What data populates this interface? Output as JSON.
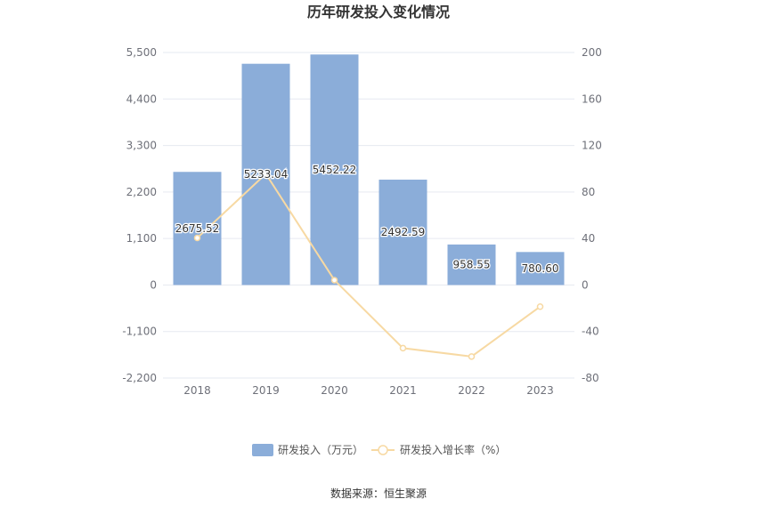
{
  "chart_data": {
    "type": "bar",
    "title": "历年研发投入变化情况",
    "categories": [
      "2018",
      "2019",
      "2020",
      "2021",
      "2022",
      "2023"
    ],
    "series": [
      {
        "name": "研发投入（万元）",
        "kind": "bar",
        "axis": "left",
        "color": "#8badd9",
        "values": [
          2675.52,
          5233.04,
          5452.22,
          2492.59,
          958.55,
          780.6
        ],
        "labels": [
          "2675.52",
          "5233.04",
          "5452.22",
          "2492.59",
          "958.55",
          "780.60"
        ]
      },
      {
        "name": "研发投入增长率（%）",
        "kind": "line",
        "axis": "right",
        "color": "#f7d9a3",
        "values": [
          40.5,
          95.6,
          4.2,
          -54.3,
          -61.5,
          -18.6
        ]
      }
    ],
    "y_left": {
      "min": -2200,
      "max": 5500,
      "ticks": [
        "5,500",
        "4,400",
        "3,300",
        "2,200",
        "1,100",
        "0",
        "-1,100",
        "-2,200"
      ]
    },
    "y_right": {
      "min": -80,
      "max": 200,
      "ticks": [
        "200",
        "160",
        "120",
        "80",
        "40",
        "0",
        "-40",
        "-80"
      ]
    },
    "grid": true,
    "legend_position": "bottom"
  },
  "source_text": "数据来源：恒生聚源"
}
